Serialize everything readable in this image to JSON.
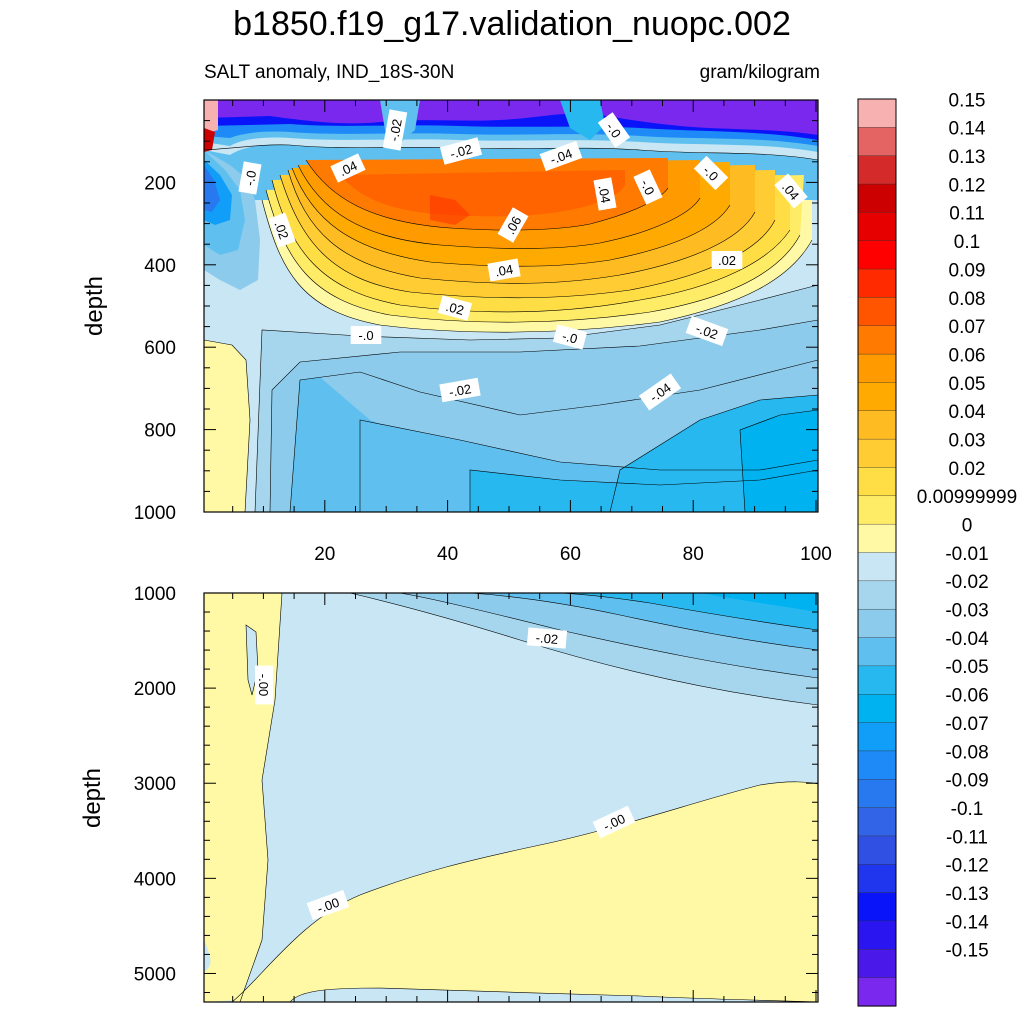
{
  "title": "b1850.f19_g17.validation_nuopc.002",
  "subtitle_left": "SALT anomaly, IND_18S-30N",
  "subtitle_right": "gram/kilogram",
  "chart_data": [
    {
      "type": "heatmap",
      "panel": "upper",
      "variable": "SALT anomaly, IND_18S-30N",
      "units": "gram/kilogram",
      "ylabel": "depth",
      "xlabel": "",
      "xlim": [
        0,
        100
      ],
      "ylim": [
        0,
        1000
      ],
      "y_inverted": true,
      "x_ticks": [
        "20",
        "40",
        "60",
        "80",
        "100"
      ],
      "y_ticks": [
        "200",
        "400",
        "600",
        "800",
        "1000"
      ],
      "contour_labels": [
        "-.02",
        "-.0",
        ".04",
        "-.02",
        "-.04",
        "-.0",
        "-.0",
        ".04",
        ".04",
        ".06",
        "-.0",
        ".02",
        ".04",
        ".02",
        ".02",
        "-.0",
        "-.0",
        "-.02",
        "-.02",
        "-.04"
      ],
      "grid": false
    },
    {
      "type": "heatmap",
      "panel": "lower",
      "variable": "SALT anomaly, IND_18S-30N",
      "units": "gram/kilogram",
      "ylabel": "depth",
      "xlabel": "",
      "xlim": [
        0,
        100
      ],
      "ylim": [
        1000,
        5300
      ],
      "y_inverted": true,
      "y_ticks": [
        "1000",
        "2000",
        "3000",
        "4000",
        "5000"
      ],
      "contour_labels": [
        "-.00",
        "-.02",
        "-.00",
        "-.00"
      ],
      "grid": false
    }
  ],
  "colorbar": {
    "labels": [
      "0.15",
      "0.14",
      "0.13",
      "0.12",
      "0.11",
      "0.1",
      "0.09",
      "0.08",
      "0.07",
      "0.06",
      "0.05",
      "0.04",
      "0.03",
      "0.02",
      "0.00999999",
      "0",
      "-0.01",
      "-0.02",
      "-0.03",
      "-0.04",
      "-0.05",
      "-0.06",
      "-0.07",
      "-0.08",
      "-0.09",
      "-0.1",
      "-0.11",
      "-0.12",
      "-0.13",
      "-0.14",
      "-0.15"
    ],
    "colors": [
      "#f8b1b1",
      "#e46464",
      "#d42a2a",
      "#cc0000",
      "#e60000",
      "#ff0000",
      "#ff2a00",
      "#ff5500",
      "#ff7a00",
      "#ff9a00",
      "#ffaa00",
      "#ffbc22",
      "#ffcc33",
      "#ffdd44",
      "#ffec66",
      "#fff9a6",
      "#c8e6f3",
      "#a6d6ee",
      "#8ccbec",
      "#5fc0f0",
      "#27b8f0",
      "#00b2f0",
      "#109ef8",
      "#1e8af8",
      "#2878f0",
      "#3264e8",
      "#3050e4",
      "#1f36ee",
      "#0a14f8",
      "#2a14f0",
      "#4a18e8",
      "#7b28ee"
    ]
  }
}
